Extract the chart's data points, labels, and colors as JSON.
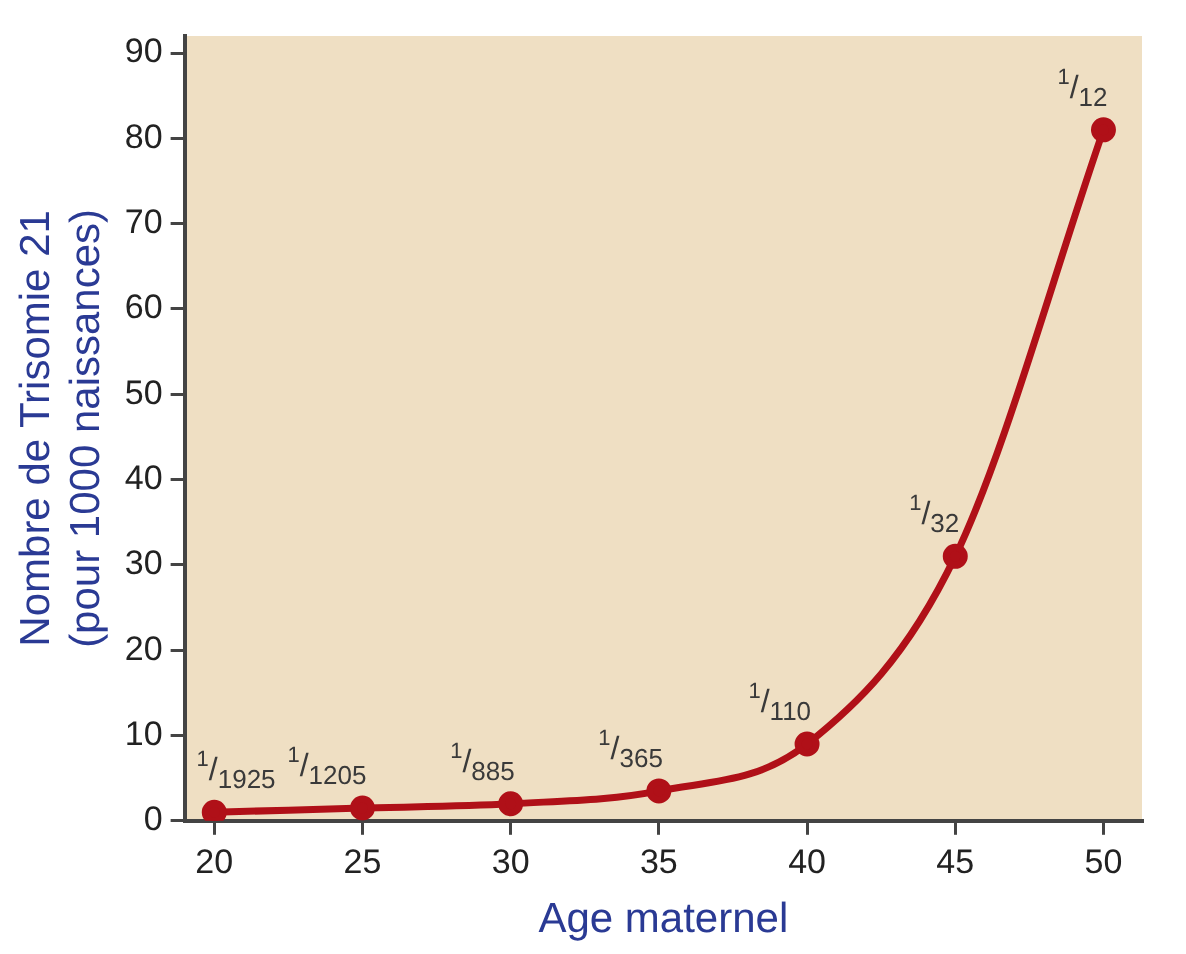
{
  "chart_data": {
    "type": "line",
    "xlabel": "Age maternel",
    "ylabel": "Nombre de Trisomie 21\n(pour 1000 naissances)",
    "x": [
      20,
      25,
      30,
      35,
      40,
      45,
      50
    ],
    "series": [
      {
        "color": "#b01018",
        "values": [
          1,
          1.5,
          2,
          3.5,
          9,
          31,
          81
        ]
      }
    ],
    "xlim": [
      19,
      51.3
    ],
    "xticks": [
      20,
      25,
      30,
      35,
      40,
      45,
      50
    ],
    "ylim": [
      0,
      92
    ],
    "yticks": [
      0,
      10,
      20,
      30,
      40,
      50,
      60,
      70,
      80,
      90
    ],
    "grid": false,
    "legend": false,
    "marker": "circle",
    "line_style": "solid",
    "annotations": [
      {
        "text": "$^{1}$/$_{1925}$",
        "x": 20,
        "y": 1
      },
      {
        "text": "$^{1}$/$_{1205}$",
        "x": 25,
        "y": 1.5
      },
      {
        "text": "$^{1}$/$_{885}$",
        "x": 30,
        "y": 2
      },
      {
        "text": "$^{1}$/$_{365}$",
        "x": 35,
        "y": 3.5
      },
      {
        "text": "$^{1}$/$_{110}$",
        "x": 40,
        "y": 9
      },
      {
        "text": "$^{1}$/$_{32}$",
        "x": 45,
        "y": 31
      },
      {
        "text": "$^{1}$/$_{12}$",
        "x": 50,
        "y": 81
      }
    ]
  }
}
